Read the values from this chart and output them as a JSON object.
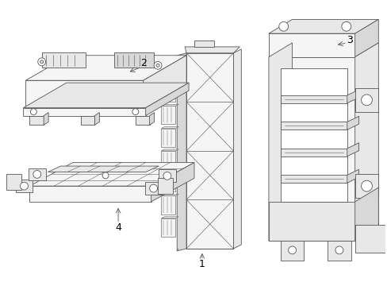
{
  "background_color": "#ffffff",
  "line_color": "#808080",
  "line_color_dark": "#555555",
  "line_width": 0.6,
  "label_color": "#000000",
  "label_fontsize": 8,
  "fig_width": 4.89,
  "fig_height": 3.6,
  "dpi": 100,
  "face_light": "#f5f5f5",
  "face_mid": "#e8e8e8",
  "face_dark": "#d8d8d8",
  "face_white": "#ffffff"
}
